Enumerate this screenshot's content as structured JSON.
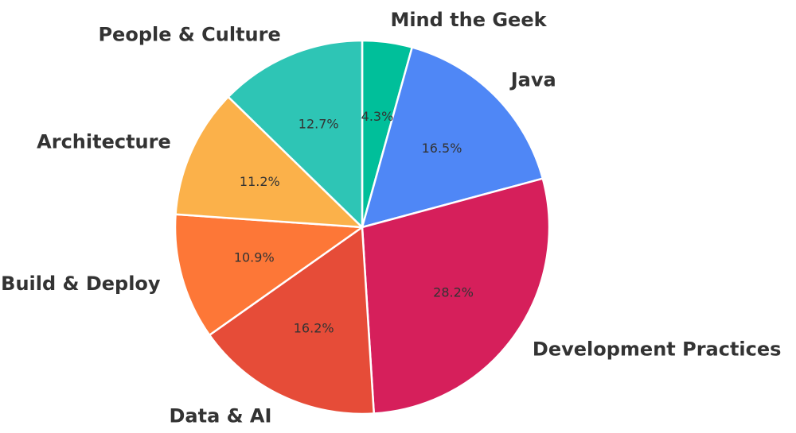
{
  "chart_data": {
    "type": "pie",
    "title": "",
    "start_angle_deg": 90,
    "direction": "clockwise",
    "slice_stroke_color": "#ffffff",
    "slices": [
      {
        "label": "Mind the Geek",
        "value": 4.3,
        "pct_label": "4.3%",
        "color": "#00BF9A"
      },
      {
        "label": "Java",
        "value": 16.5,
        "pct_label": "16.5%",
        "color": "#4F87F6"
      },
      {
        "label": "Development Practices",
        "value": 28.2,
        "pct_label": "28.2%",
        "color": "#D61F5B"
      },
      {
        "label": "Data & AI",
        "value": 16.2,
        "pct_label": "16.2%",
        "color": "#E64C38"
      },
      {
        "label": "Build & Deploy",
        "value": 10.9,
        "pct_label": "10.9%",
        "color": "#FD7737"
      },
      {
        "label": "Architecture",
        "value": 11.2,
        "pct_label": "11.2%",
        "color": "#FBB14A"
      },
      {
        "label": "People & Culture",
        "value": 12.7,
        "pct_label": "12.7%",
        "color": "#2EC5B5"
      }
    ]
  }
}
